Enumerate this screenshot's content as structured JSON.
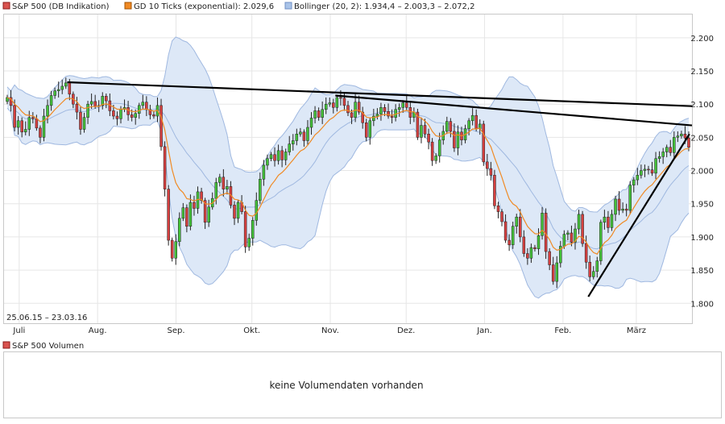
{
  "legend": [
    {
      "label": "S&P 500 (DB Indikation)",
      "color": "#d9534f",
      "border": "#8b1a1a"
    },
    {
      "label": "GD 10 Ticks (exponential): 2.029,6",
      "color": "#f08a24",
      "border": "#a35300"
    },
    {
      "label": "Bollinger (20, 2): 1.934,4 – 2.003,3 – 2.072,2",
      "color": "#a9c3e8",
      "border": "#6f8fc4"
    }
  ],
  "date_range": "25.06.15 – 23.03.16",
  "volume": {
    "legend_label": "S&P 500 Volumen",
    "legend_color": "#d9534f",
    "no_data_text": "keine Volumendaten vorhanden"
  },
  "colors": {
    "up": "#44c13a",
    "down": "#d64040",
    "ema": "#f08a24",
    "band_fill": "#dde8f7",
    "band_line": "#9fb8e0",
    "grid": "#e6e6e6",
    "trendline": "#000000"
  },
  "chart_data": {
    "type": "candlestick",
    "title": "",
    "xlabel": "",
    "ylabel": "",
    "ylim": [
      1770,
      2235
    ],
    "x_range": [
      "2015-06-25",
      "2016-03-23"
    ],
    "y_ticks": [
      1800,
      1850,
      1900,
      1950,
      2000,
      2050,
      2100,
      2150,
      2200
    ],
    "y_tick_labels": [
      "1.800",
      "1.850",
      "1.900",
      "1.950",
      "2.000",
      "2.050",
      "2.100",
      "2.150",
      "2.200"
    ],
    "x_ticks": [
      {
        "label": "Juli",
        "date": "2015-07-01"
      },
      {
        "label": "Aug.",
        "date": "2015-08-01"
      },
      {
        "label": "Sep.",
        "date": "2015-09-01"
      },
      {
        "label": "Okt.",
        "date": "2015-10-01"
      },
      {
        "label": "Nov.",
        "date": "2015-11-01"
      },
      {
        "label": "Dez.",
        "date": "2015-12-01"
      },
      {
        "label": "Jan.",
        "date": "2016-01-01"
      },
      {
        "label": "Feb.",
        "date": "2016-02-01"
      },
      {
        "label": "März",
        "date": "2016-03-01"
      }
    ],
    "close": [
      2110,
      2098,
      2065,
      2075,
      2058,
      2062,
      2080,
      2078,
      2064,
      2050,
      2082,
      2098,
      2113,
      2120,
      2122,
      2127,
      2132,
      2115,
      2100,
      2088,
      2062,
      2080,
      2100,
      2104,
      2097,
      2098,
      2112,
      2105,
      2090,
      2082,
      2078,
      2092,
      2095,
      2084,
      2080,
      2086,
      2098,
      2103,
      2092,
      2084,
      2082,
      2098,
      2036,
      1972,
      1895,
      1868,
      1893,
      1928,
      1944,
      1916,
      1952,
      1943,
      1968,
      1955,
      1922,
      1945,
      1958,
      1982,
      1990,
      1972,
      1976,
      1948,
      1928,
      1952,
      1938,
      1885,
      1898,
      1925,
      1955,
      1987,
      2008,
      2018,
      2024,
      2015,
      2030,
      2016,
      2028,
      2040,
      2045,
      2055,
      2058,
      2045,
      2065,
      2079,
      2090,
      2080,
      2092,
      2100,
      2102,
      2095,
      2110,
      2109,
      2098,
      2087,
      2080,
      2103,
      2088,
      2072,
      2050,
      2075,
      2082,
      2085,
      2095,
      2089,
      2082,
      2080,
      2092,
      2095,
      2102,
      2095,
      2080,
      2088,
      2050,
      2068,
      2055,
      2043,
      2015,
      2022,
      2046,
      2059,
      2074,
      2059,
      2034,
      2058,
      2046,
      2063,
      2075,
      2083,
      2063,
      2070,
      2013,
      2003,
      1993,
      1947,
      1938,
      1923,
      1895,
      1888,
      1916,
      1930,
      1900,
      1875,
      1868,
      1884,
      1882,
      1902,
      1936,
      1878,
      1858,
      1833,
      1861,
      1886,
      1904,
      1906,
      1892,
      1912,
      1934,
      1890,
      1862,
      1840,
      1848,
      1864,
      1922,
      1930,
      1914,
      1934,
      1957,
      1940,
      1942,
      1940,
      1978,
      1986,
      1993,
      2000,
      2002,
      2001,
      1996,
      2018,
      2021,
      2028,
      2035,
      2027,
      2050,
      2052,
      2055,
      2049,
      2035
    ],
    "ema10_last": 2029.6,
    "bollinger": {
      "period": 20,
      "stddev": 2,
      "lower": 1934.4,
      "middle": 2003.3,
      "upper": 2072.2
    },
    "trendlines": [
      {
        "from": {
          "date": "2015-07-20",
          "value": 2133
        },
        "to": {
          "date": "2016-03-23",
          "value": 2097
        }
      },
      {
        "from": {
          "date": "2015-11-03",
          "value": 2113
        },
        "to": {
          "date": "2016-03-23",
          "value": 2068
        }
      },
      {
        "from": {
          "date": "2016-02-11",
          "value": 1810
        },
        "to": {
          "date": "2016-03-22",
          "value": 2055
        }
      }
    ]
  }
}
